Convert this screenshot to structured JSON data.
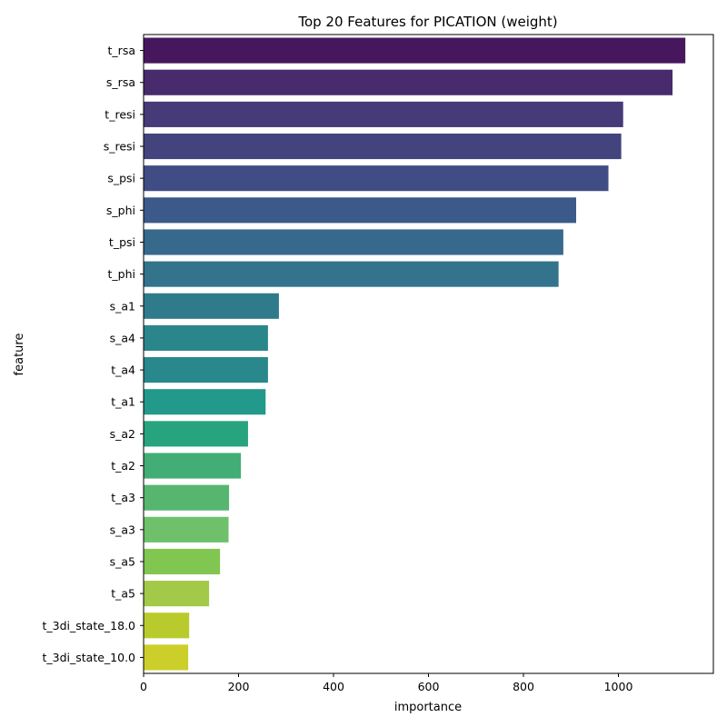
{
  "chart_data": {
    "type": "bar",
    "orientation": "horizontal",
    "title": "Top 20 Features for PICATION (weight)",
    "xlabel": "importance",
    "ylabel": "feature",
    "xlim": [
      0,
      1200
    ],
    "xticks": [
      0,
      200,
      400,
      600,
      800,
      1000
    ],
    "grid": false,
    "categories": [
      "t_rsa",
      "s_rsa",
      "t_resi",
      "s_resi",
      "s_psi",
      "s_phi",
      "t_psi",
      "t_phi",
      "s_a1",
      "s_a4",
      "t_a4",
      "t_a1",
      "s_a2",
      "t_a2",
      "t_a3",
      "s_a3",
      "s_a5",
      "t_a5",
      "t_3di_state_18.0",
      "t_3di_state_10.0"
    ],
    "values": [
      1141,
      1114,
      1010,
      1006,
      979,
      911,
      884,
      874,
      285,
      262,
      262,
      257,
      220,
      205,
      180,
      179,
      161,
      138,
      96,
      94
    ],
    "colors": [
      "#47175e",
      "#472b6d",
      "#463a78",
      "#43447e",
      "#3f4d84",
      "#3b5a89",
      "#36698b",
      "#33738c",
      "#2f7b8c",
      "#2b868c",
      "#28888b",
      "#22998a",
      "#27a47e",
      "#43ad76",
      "#56b670",
      "#6ec16a",
      "#82c652",
      "#a2c947",
      "#b9cb2c",
      "#cccf2a"
    ]
  }
}
